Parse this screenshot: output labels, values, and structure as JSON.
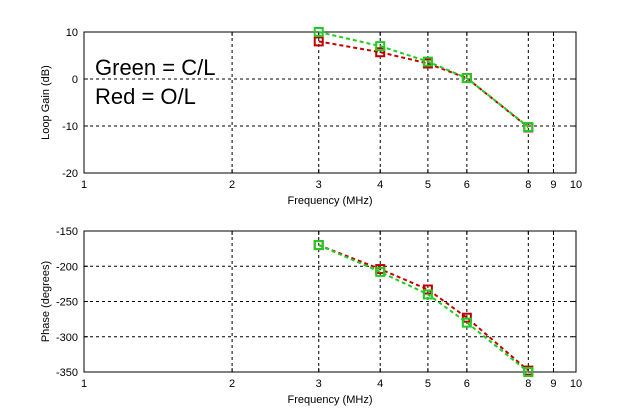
{
  "chart_data": [
    {
      "type": "line",
      "xlabel": "Frequency (MHz)",
      "ylabel": "Loop Gain (dB)",
      "xscale": "log",
      "xlim": [
        1,
        10
      ],
      "ylim": [
        -20,
        10
      ],
      "xticks": [
        1,
        2,
        3,
        4,
        5,
        6,
        8,
        9,
        10
      ],
      "yticks": [
        10,
        0,
        -10,
        -20
      ],
      "grid": true,
      "annotations": [
        "Green = C/L",
        "Red = O/L"
      ],
      "x": [
        3,
        4,
        5,
        6,
        8
      ],
      "series": [
        {
          "color": "#c00000",
          "values": [
            8,
            5.7,
            3.3,
            0.2,
            -10.3
          ]
        },
        {
          "color": "#22cc22",
          "values": [
            10,
            7,
            3.7,
            0.2,
            -10.2
          ]
        }
      ]
    },
    {
      "type": "line",
      "xlabel": "Frequency (MHz)",
      "ylabel": "Phase (degrees)",
      "xscale": "log",
      "xlim": [
        1,
        10
      ],
      "ylim": [
        -350,
        -150
      ],
      "xticks": [
        1,
        2,
        3,
        4,
        5,
        6,
        8,
        9,
        10
      ],
      "yticks": [
        -150,
        -200,
        -250,
        -300,
        -350
      ],
      "grid": true,
      "x": [
        3,
        4,
        5,
        6,
        8
      ],
      "series": [
        {
          "color": "#c00000",
          "values": [
            -170,
            -204,
            -233,
            -273,
            -348
          ]
        },
        {
          "color": "#22cc22",
          "values": [
            -170,
            -208,
            -240,
            -280,
            -350
          ]
        }
      ]
    }
  ]
}
